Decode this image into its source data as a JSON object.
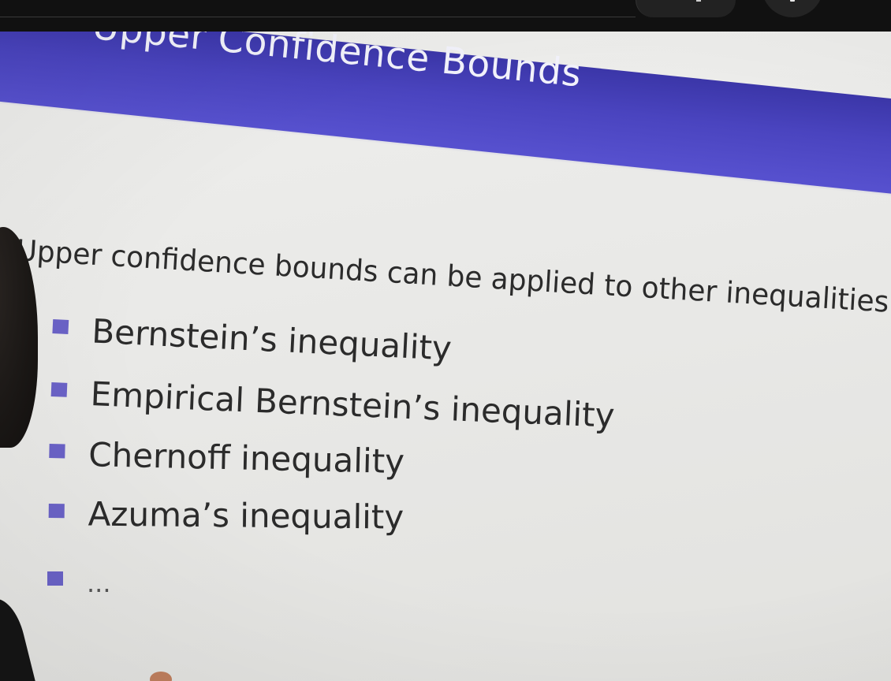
{
  "slide": {
    "title": "Upper Confidence Bounds",
    "lead": "Upper confidence bounds can be applied to other inequalities",
    "bullets": [
      "Bernstein’s inequality",
      "Empirical Bernstein’s inequality",
      "Chernoff inequality",
      "Azuma’s inequality",
      "..."
    ]
  },
  "colors": {
    "header": "#4a44bf",
    "bullet_marker": "#6a62c6",
    "slide_background": "#ececea",
    "player_bar": "#111111"
  },
  "player": {
    "controls": [
      "menu-control",
      "more-options-control"
    ]
  }
}
